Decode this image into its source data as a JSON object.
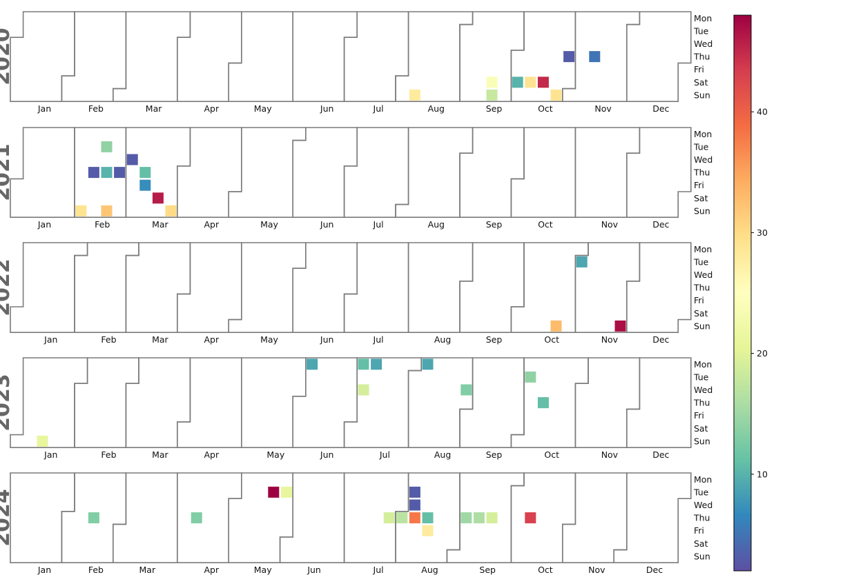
{
  "chart_data": {
    "type": "heatmap",
    "subtype": "calendar",
    "years": [
      2020,
      2021,
      2022,
      2023,
      2024
    ],
    "weekday_labels": [
      "Mon",
      "Tue",
      "Wed",
      "Thu",
      "Fri",
      "Sat",
      "Sun"
    ],
    "month_labels": [
      "Jan",
      "Feb",
      "Mar",
      "Apr",
      "May",
      "Jun",
      "Jul",
      "Aug",
      "Sep",
      "Oct",
      "Nov",
      "Dec"
    ],
    "colormap": "Spectral_r",
    "colormap_stops": [
      "#5e4fa2",
      "#3288bd",
      "#66c2a5",
      "#abdda4",
      "#e6f598",
      "#ffffbf",
      "#fee08b",
      "#fdae61",
      "#f46d43",
      "#d53e4f",
      "#9e0142"
    ],
    "value_range": [
      2,
      48
    ],
    "colorbar_ticks": [
      10,
      20,
      30,
      40
    ],
    "month_outline_color": "#7a7a7a",
    "values": [
      {
        "date": "2020-08-09",
        "value": 28
      },
      {
        "date": "2020-09-19",
        "value": 24
      },
      {
        "date": "2020-09-20",
        "value": 18
      },
      {
        "date": "2020-10-03",
        "value": 10
      },
      {
        "date": "2020-10-10",
        "value": 29
      },
      {
        "date": "2020-10-17",
        "value": 45
      },
      {
        "date": "2020-10-25",
        "value": 29
      },
      {
        "date": "2020-10-29",
        "value": 3
      },
      {
        "date": "2020-11-12",
        "value": 5
      },
      {
        "date": "2021-02-07",
        "value": 29
      },
      {
        "date": "2021-02-11",
        "value": 3
      },
      {
        "date": "2021-02-16",
        "value": 14
      },
      {
        "date": "2021-02-18",
        "value": 10
      },
      {
        "date": "2021-02-21",
        "value": 32
      },
      {
        "date": "2021-02-25",
        "value": 3
      },
      {
        "date": "2021-03-03",
        "value": 3
      },
      {
        "date": "2021-03-11",
        "value": 11
      },
      {
        "date": "2021-03-12",
        "value": 7
      },
      {
        "date": "2021-03-20",
        "value": 46
      },
      {
        "date": "2021-03-28",
        "value": 30
      },
      {
        "date": "2022-10-23",
        "value": 33
      },
      {
        "date": "2022-11-01",
        "value": 9
      },
      {
        "date": "2022-11-27",
        "value": 47
      },
      {
        "date": "2023-01-15",
        "value": 21
      },
      {
        "date": "2023-06-05",
        "value": 9
      },
      {
        "date": "2023-07-03",
        "value": 11
      },
      {
        "date": "2023-07-05",
        "value": 19
      },
      {
        "date": "2023-07-10",
        "value": 9
      },
      {
        "date": "2023-08-07",
        "value": 9
      },
      {
        "date": "2023-08-30",
        "value": 13
      },
      {
        "date": "2023-10-03",
        "value": 14
      },
      {
        "date": "2023-10-12",
        "value": 11
      },
      {
        "date": "2024-02-15",
        "value": 13
      },
      {
        "date": "2024-04-11",
        "value": 13
      },
      {
        "date": "2024-05-21",
        "value": 48
      },
      {
        "date": "2024-05-28",
        "value": 21
      },
      {
        "date": "2024-07-25",
        "value": 19
      },
      {
        "date": "2024-08-01",
        "value": 17
      },
      {
        "date": "2024-08-06",
        "value": 3
      },
      {
        "date": "2024-08-07",
        "value": 3
      },
      {
        "date": "2024-08-08",
        "value": 38
      },
      {
        "date": "2024-08-15",
        "value": 11
      },
      {
        "date": "2024-08-16",
        "value": 28
      },
      {
        "date": "2024-09-05",
        "value": 15
      },
      {
        "date": "2024-09-12",
        "value": 16
      },
      {
        "date": "2024-09-19",
        "value": 19
      },
      {
        "date": "2024-10-10",
        "value": 43
      }
    ]
  }
}
